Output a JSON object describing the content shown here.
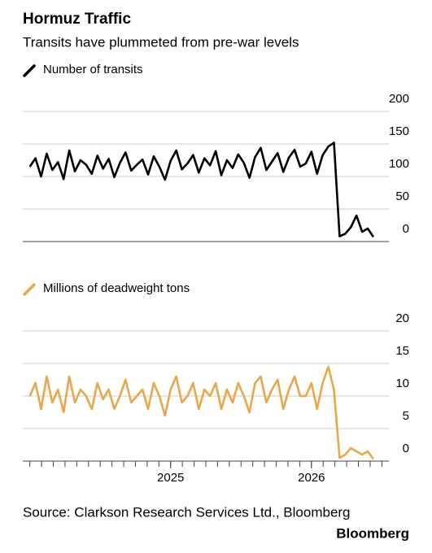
{
  "title": "Hormuz Traffic",
  "subtitle": "Transits have plummeted from pre-war levels",
  "source": "Source: Clarkson Research Services Ltd., Bloomberg",
  "brand": "Bloomberg",
  "chart_data": [
    {
      "type": "line",
      "x": [
        2024.0,
        2024.04,
        2024.08,
        2024.12,
        2024.16,
        2024.2,
        2024.24,
        2024.28,
        2024.32,
        2024.36,
        2024.4,
        2024.44,
        2024.48,
        2024.52,
        2024.56,
        2024.6,
        2024.64,
        2024.68,
        2024.72,
        2024.76,
        2024.8,
        2024.84,
        2024.88,
        2024.92,
        2024.96,
        2025.0,
        2025.04,
        2025.08,
        2025.12,
        2025.16,
        2025.2,
        2025.24,
        2025.28,
        2025.32,
        2025.36,
        2025.4,
        2025.44,
        2025.48,
        2025.52,
        2025.56,
        2025.6,
        2025.64,
        2025.68,
        2025.72,
        2025.76,
        2025.8,
        2025.84,
        2025.88,
        2025.92,
        2025.96,
        2026.0,
        2026.04,
        2026.08,
        2026.12,
        2026.16,
        2026.2,
        2026.24,
        2026.28,
        2026.32,
        2026.36,
        2026.4,
        2026.44
      ],
      "series": [
        {
          "name": "Number of transits",
          "color": "#000000",
          "values": [
            115,
            128,
            100,
            135,
            110,
            122,
            96,
            140,
            108,
            125,
            118,
            104,
            132,
            112,
            127,
            99,
            121,
            137,
            109,
            118,
            126,
            103,
            131,
            115,
            95,
            124,
            140,
            111,
            120,
            133,
            106,
            128,
            117,
            139,
            102,
            125,
            113,
            134,
            121,
            98,
            130,
            144,
            110,
            123,
            136,
            107,
            129,
            141,
            115,
            120,
            138,
            104,
            133,
            146,
            152,
            8,
            12,
            22,
            40,
            15,
            20,
            7
          ]
        }
      ],
      "xlim": [
        2023.95,
        2026.55
      ],
      "ylim": [
        0,
        200
      ],
      "yticks": [
        0,
        50,
        100,
        150,
        200
      ],
      "grid": true
    },
    {
      "type": "line",
      "x": [
        2024.0,
        2024.04,
        2024.08,
        2024.12,
        2024.16,
        2024.2,
        2024.24,
        2024.28,
        2024.32,
        2024.36,
        2024.4,
        2024.44,
        2024.48,
        2024.52,
        2024.56,
        2024.6,
        2024.64,
        2024.68,
        2024.72,
        2024.76,
        2024.8,
        2024.84,
        2024.88,
        2024.92,
        2024.96,
        2025.0,
        2025.04,
        2025.08,
        2025.12,
        2025.16,
        2025.2,
        2025.24,
        2025.28,
        2025.32,
        2025.36,
        2025.4,
        2025.44,
        2025.48,
        2025.52,
        2025.56,
        2025.6,
        2025.64,
        2025.68,
        2025.72,
        2025.76,
        2025.8,
        2025.84,
        2025.88,
        2025.92,
        2025.96,
        2026.0,
        2026.04,
        2026.08,
        2026.12,
        2026.16,
        2026.2,
        2026.24,
        2026.28,
        2026.32,
        2026.36,
        2026.4,
        2026.44
      ],
      "series": [
        {
          "name": "Millions of deadweight tons",
          "color": "#e8a84a",
          "values": [
            10,
            12,
            8,
            13,
            9,
            11,
            7.5,
            13,
            9,
            11,
            10,
            8,
            12,
            9.5,
            11,
            8,
            10,
            12.5,
            9,
            10,
            11,
            8,
            12,
            10,
            7,
            11,
            13,
            9,
            10,
            12,
            8,
            11,
            10,
            12,
            8,
            11,
            9,
            12,
            10,
            7.5,
            12,
            13,
            9,
            11,
            12.5,
            8,
            11,
            13,
            10,
            10,
            12,
            8,
            12,
            14.5,
            11,
            0.5,
            1,
            2,
            1.5,
            1,
            1.5,
            0.3
          ]
        }
      ],
      "xlim": [
        2023.95,
        2026.55
      ],
      "xticks": [
        2025,
        2026
      ],
      "ylim": [
        0,
        20
      ],
      "yticks": [
        0,
        5,
        10,
        15,
        20
      ],
      "grid": true
    }
  ]
}
